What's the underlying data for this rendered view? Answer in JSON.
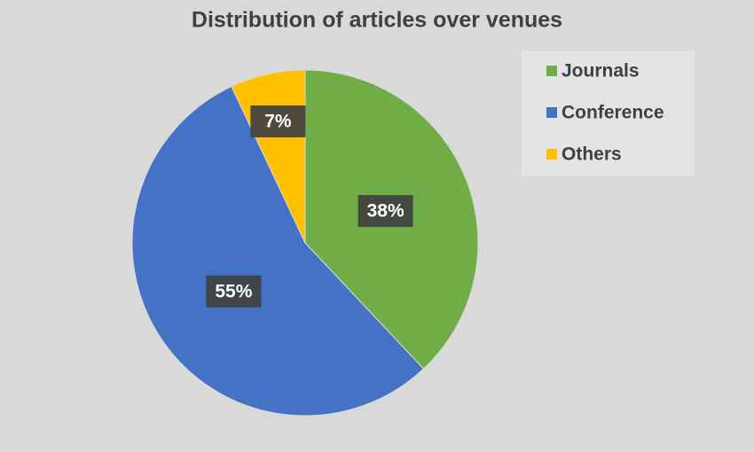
{
  "chart_data": {
    "type": "pie",
    "title": "Distribution of articles over venues",
    "categories": [
      "Journals",
      "Conference",
      "Others"
    ],
    "values": [
      38,
      55,
      7
    ],
    "value_labels": [
      "38%",
      "55%",
      "7%"
    ],
    "colors": [
      "#70ad47",
      "#4472c4",
      "#ffc000"
    ],
    "legend": "top-right"
  }
}
